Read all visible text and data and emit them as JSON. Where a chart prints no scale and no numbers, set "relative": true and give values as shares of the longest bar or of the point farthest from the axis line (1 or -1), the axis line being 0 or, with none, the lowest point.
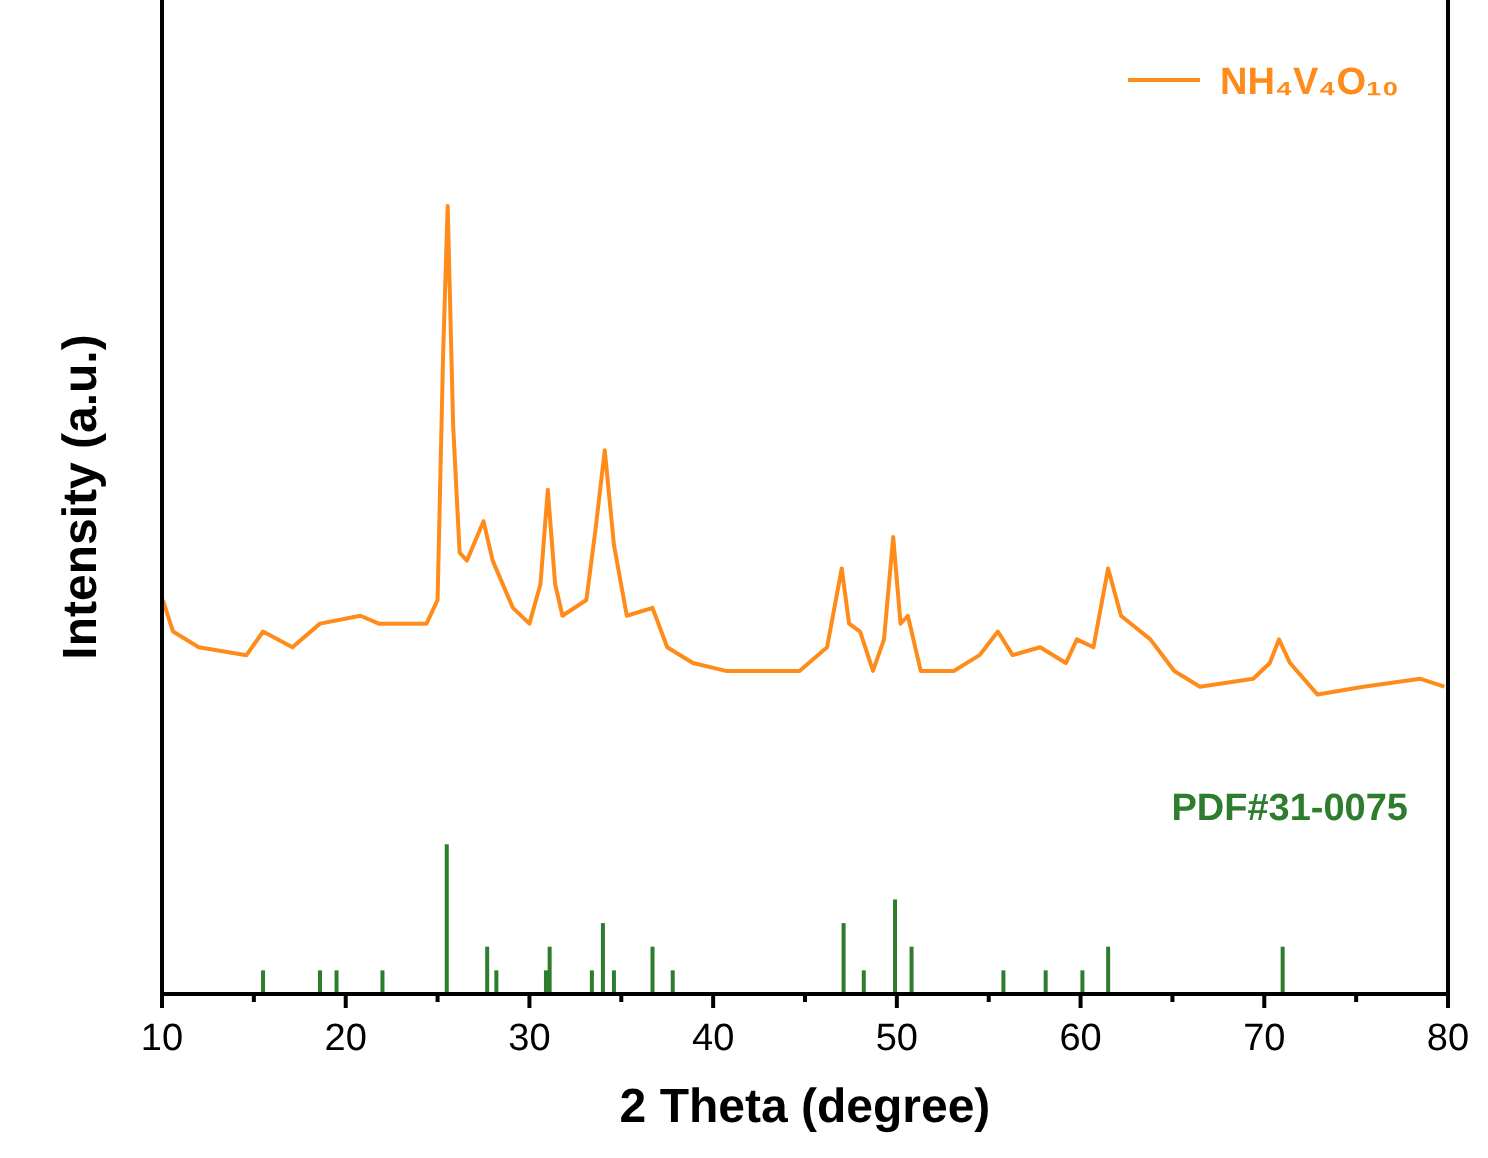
{
  "chart_data": {
    "type": "line",
    "relative": true,
    "xlabel": "2 Theta (degree)",
    "ylabel": "Intensity (a.u.)",
    "xlim": [
      10,
      80
    ],
    "xticks": [
      10,
      {
        "value": 15,
        "label": null
      },
      20,
      {
        "value": 25,
        "label": null
      },
      30,
      {
        "value": 35,
        "label": null
      },
      40,
      {
        "value": 45,
        "label": null
      },
      50,
      {
        "value": 55,
        "label": null
      },
      60,
      {
        "value": 65,
        "label": null
      },
      70,
      {
        "value": 75,
        "label": null
      },
      80
    ],
    "legend": "top right",
    "grid": false,
    "marker": "none",
    "line_style": "solid",
    "series": [
      {
        "name": "NH₄V₄O₁₀",
        "color": "#ff8c1a",
        "x": [
          10.05,
          10.6,
          12.0,
          14.6,
          15.5,
          17.1,
          18.6,
          20.8,
          21.8,
          24.4,
          25.0,
          25.3,
          25.55,
          25.85,
          26.2,
          26.6,
          27.5,
          28.0,
          29.1,
          30.0,
          30.6,
          31.0,
          31.4,
          31.8,
          33.1,
          33.6,
          34.1,
          34.6,
          35.3,
          36.7,
          37.5,
          38.9,
          40.7,
          42.5,
          44.7,
          46.2,
          47.0,
          47.4,
          48.0,
          48.7,
          49.3,
          49.8,
          50.2,
          50.6,
          51.3,
          53.1,
          54.5,
          55.5,
          56.3,
          57.8,
          59.2,
          59.8,
          60.7,
          61.5,
          62.2,
          63.8,
          65.1,
          66.5,
          69.4,
          70.3,
          70.8,
          71.4,
          72.9,
          75.4,
          78.5,
          79.8
        ],
        "values": [
          0.5,
          0.46,
          0.44,
          0.43,
          0.46,
          0.44,
          0.47,
          0.48,
          0.47,
          0.47,
          0.5,
          0.81,
          1.0,
          0.72,
          0.56,
          0.55,
          0.6,
          0.55,
          0.49,
          0.47,
          0.52,
          0.64,
          0.52,
          0.48,
          0.5,
          0.59,
          0.69,
          0.57,
          0.48,
          0.49,
          0.44,
          0.42,
          0.41,
          0.41,
          0.41,
          0.44,
          0.54,
          0.47,
          0.46,
          0.41,
          0.45,
          0.58,
          0.47,
          0.48,
          0.41,
          0.41,
          0.43,
          0.46,
          0.43,
          0.44,
          0.42,
          0.45,
          0.44,
          0.54,
          0.48,
          0.45,
          0.41,
          0.39,
          0.4,
          0.42,
          0.45,
          0.42,
          0.38,
          0.39,
          0.4,
          0.39
        ]
      },
      {
        "name": "PDF#31-0075",
        "color": "#2e7d2e",
        "type": "bar",
        "x": [
          15.5,
          18.6,
          19.5,
          22.0,
          25.5,
          27.7,
          28.2,
          30.9,
          31.1,
          33.4,
          34.0,
          34.6,
          36.7,
          37.8,
          47.1,
          48.2,
          49.9,
          50.8,
          55.8,
          58.1,
          60.1,
          61.5,
          71.0
        ],
        "values": [
          0.03,
          0.03,
          0.03,
          0.03,
          0.19,
          0.06,
          0.03,
          0.03,
          0.06,
          0.03,
          0.09,
          0.03,
          0.06,
          0.03,
          0.09,
          0.03,
          0.12,
          0.06,
          0.03,
          0.03,
          0.03,
          0.06,
          0.06
        ]
      }
    ]
  }
}
